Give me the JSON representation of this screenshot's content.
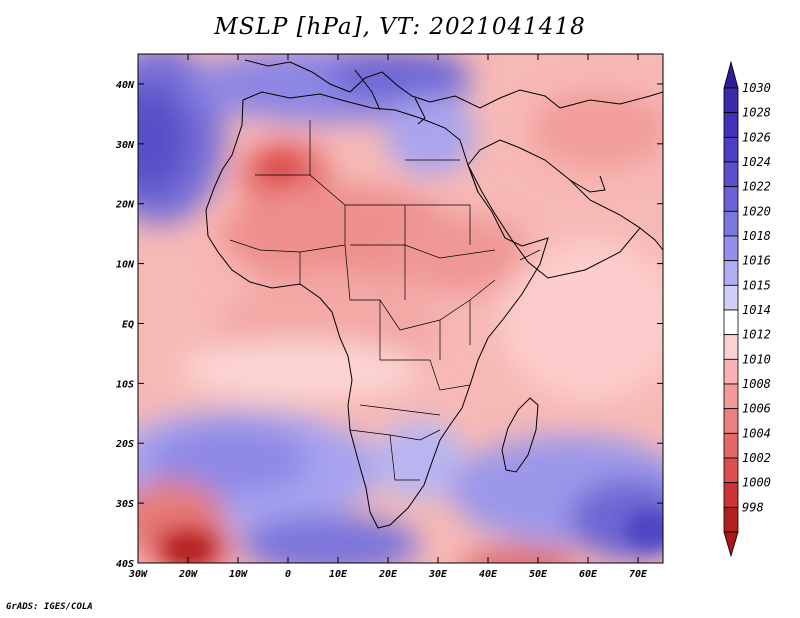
{
  "title": "MSLP [hPa], VT: 2021041418",
  "credit": "GrADS: IGES/COLA",
  "map": {
    "field": "MSLP",
    "units": "hPa",
    "valid_time": "2021041418",
    "region": "Africa",
    "lon_range": [
      -30,
      75
    ],
    "lat_range": [
      -40,
      45
    ]
  },
  "chart_data": {
    "type": "heatmap",
    "title": "MSLP [hPa], VT: 2021041418",
    "x_ticks": [
      "30W",
      "20W",
      "10W",
      "0",
      "10E",
      "20E",
      "30E",
      "40E",
      "50E",
      "60E",
      "70E"
    ],
    "x_tick_values": [
      -30,
      -20,
      -10,
      0,
      10,
      20,
      30,
      40,
      50,
      60,
      70
    ],
    "y_ticks": [
      "40N",
      "30N",
      "20N",
      "10N",
      "EQ",
      "10S",
      "20S",
      "30S",
      "40S"
    ],
    "y_tick_values": [
      40,
      30,
      20,
      10,
      0,
      -10,
      -20,
      -30,
      -40
    ],
    "xlim": [
      -30,
      75
    ],
    "ylim": [
      -40,
      45
    ],
    "colorbar_levels": [
      "1030",
      "1028",
      "1026",
      "1024",
      "1022",
      "1020",
      "1018",
      "1016",
      "1015",
      "1014",
      "1012",
      "1010",
      "1008",
      "1006",
      "1004",
      "1002",
      "1000",
      "998"
    ],
    "colorbar_colors": [
      "#3b2aaa",
      "#4333b8",
      "#4d3fc4",
      "#5a4fcc",
      "#6a62d6",
      "#7c78e0",
      "#938fea",
      "#b0aef2",
      "#d0cff8",
      "#ffffff",
      "#fbd2d2",
      "#f8b4b4",
      "#f29a9a",
      "#ea8080",
      "#e46868",
      "#dc4f4f",
      "#cc3434",
      "#b21f1f"
    ],
    "colorbar_low_color": "#a81818",
    "colorbar_high_color": "#2d1f9a"
  }
}
